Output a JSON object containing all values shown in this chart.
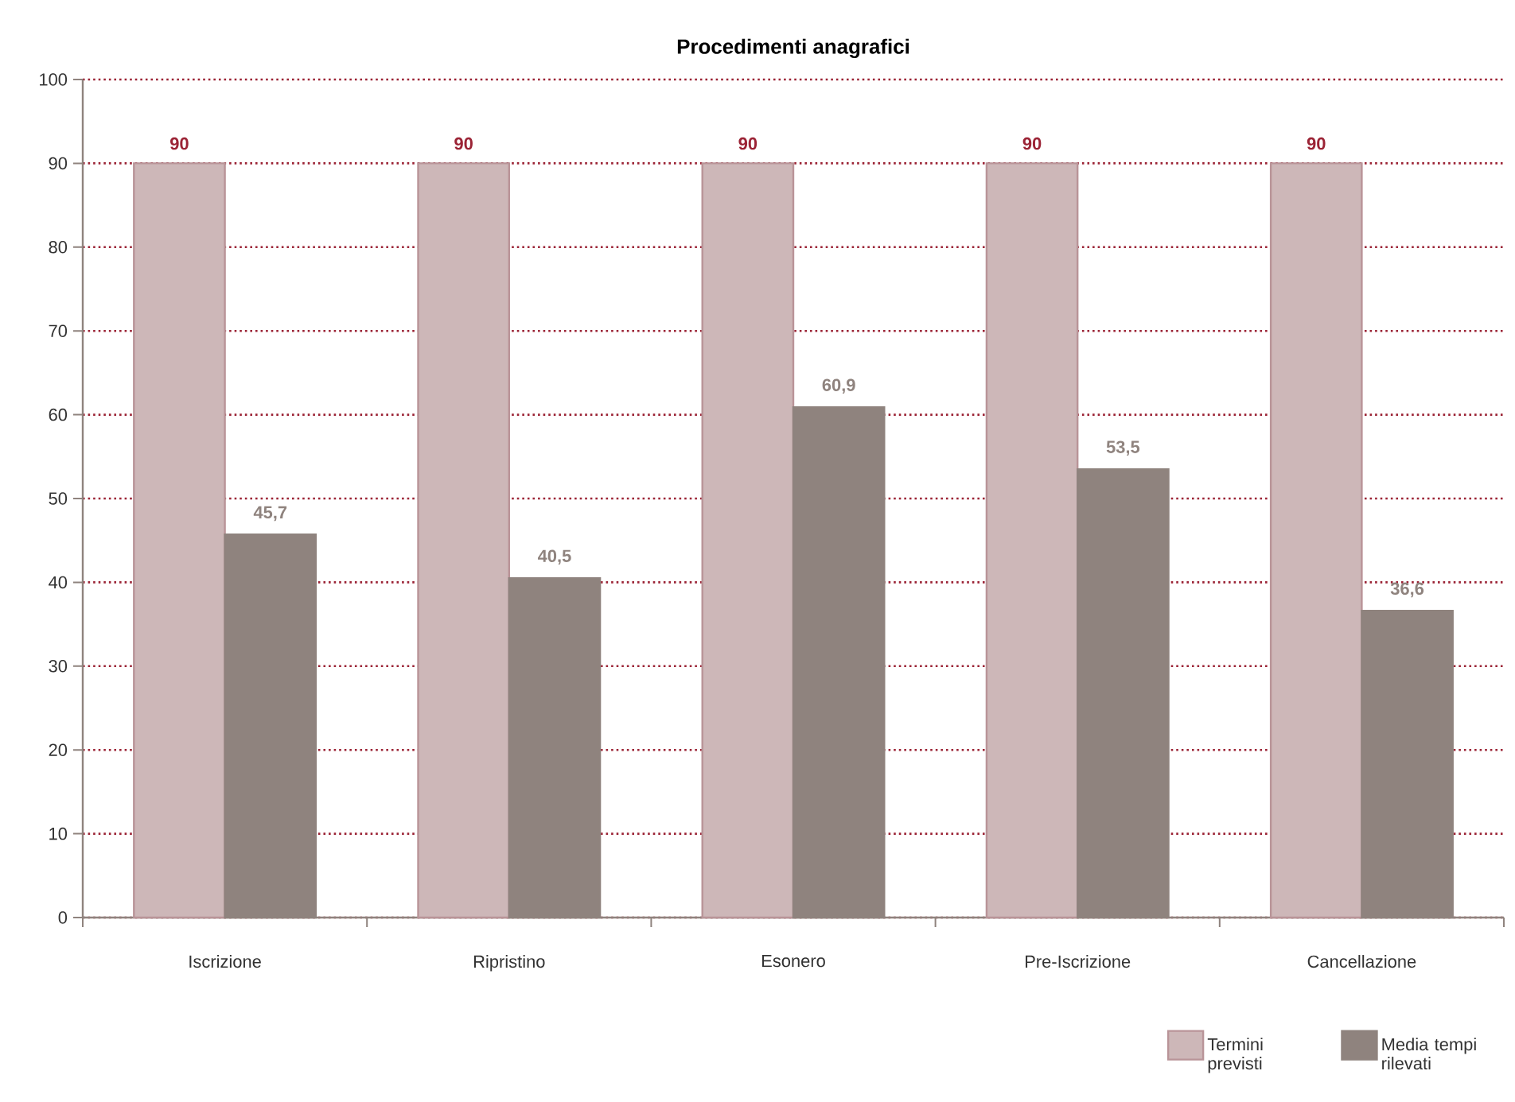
{
  "chart_data": {
    "type": "bar",
    "title": "Procedimenti anagrafici",
    "categories": [
      "Iscrizione",
      "Ripristino",
      "Esonero",
      "Pre-Iscrizione",
      "Cancellazione"
    ],
    "series": [
      {
        "name": "Termini previsti",
        "color": "#cdb7b8",
        "values": [
          90,
          90,
          90,
          90,
          90
        ],
        "value_labels": [
          "90",
          "90",
          "90",
          "90",
          "90"
        ]
      },
      {
        "name": "Media tempi rilevati",
        "color": "#8f837e",
        "values": [
          45.7,
          40.5,
          60.9,
          53.5,
          36.6
        ],
        "value_labels": [
          "45,7",
          "40,5",
          "60,9",
          "53,5",
          "36,6"
        ]
      }
    ],
    "ylim": [
      0,
      100
    ],
    "yticks": [
      0,
      10,
      20,
      30,
      40,
      50,
      60,
      70,
      80,
      90,
      100
    ],
    "grid": "y",
    "legend": "bottom right"
  }
}
